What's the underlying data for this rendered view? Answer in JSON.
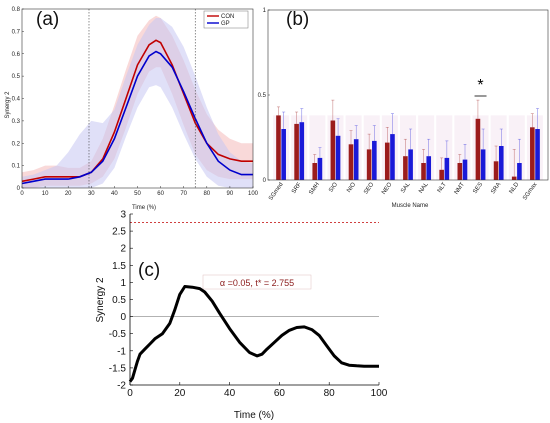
{
  "chart_data": [
    {
      "id": "a",
      "panel_label": "(a)",
      "type": "line",
      "xlabel": "Time (%)",
      "ylabel": "Synergy 2",
      "xlim": [
        0,
        100
      ],
      "ylim": [
        0,
        0.8
      ],
      "xticks": [
        "0",
        "10",
        "20",
        "30",
        "40",
        "50",
        "60",
        "70",
        "80",
        "90",
        "100"
      ],
      "yticks": [
        "0",
        "0.1",
        "0.2",
        "0.3",
        "0.4",
        "0.5",
        "0.6",
        "0.7",
        "0.8"
      ],
      "vlines": [
        29,
        75
      ],
      "legend": [
        "CON",
        "GP"
      ],
      "legend_position": "top-right",
      "x": [
        0,
        5,
        10,
        15,
        20,
        25,
        30,
        35,
        40,
        45,
        50,
        55,
        58,
        60,
        65,
        70,
        75,
        80,
        85,
        90,
        95,
        100
      ],
      "series": [
        {
          "name": "CON",
          "color": "#c00000",
          "band_color": "#f4b9b9",
          "values": [
            0.03,
            0.04,
            0.05,
            0.05,
            0.05,
            0.05,
            0.07,
            0.13,
            0.25,
            0.4,
            0.55,
            0.64,
            0.66,
            0.65,
            0.55,
            0.42,
            0.29,
            0.2,
            0.15,
            0.13,
            0.12,
            0.12
          ],
          "upper": [
            0.07,
            0.08,
            0.1,
            0.1,
            0.09,
            0.09,
            0.12,
            0.22,
            0.37,
            0.53,
            0.68,
            0.75,
            0.77,
            0.76,
            0.68,
            0.57,
            0.44,
            0.33,
            0.26,
            0.22,
            0.2,
            0.2
          ],
          "lower": [
            0,
            0,
            0.01,
            0.01,
            0.01,
            0.01,
            0.02,
            0.05,
            0.13,
            0.27,
            0.42,
            0.52,
            0.54,
            0.54,
            0.42,
            0.28,
            0.15,
            0.08,
            0.05,
            0.04,
            0.04,
            0.04
          ]
        },
        {
          "name": "GP",
          "color": "#0000cc",
          "band_color": "#c6c6f2",
          "values": [
            0.02,
            0.03,
            0.04,
            0.04,
            0.04,
            0.05,
            0.07,
            0.12,
            0.22,
            0.36,
            0.5,
            0.59,
            0.61,
            0.6,
            0.54,
            0.43,
            0.31,
            0.2,
            0.12,
            0.08,
            0.06,
            0.06
          ],
          "upper": [
            0.05,
            0.06,
            0.08,
            0.1,
            0.16,
            0.24,
            0.3,
            0.29,
            0.35,
            0.5,
            0.64,
            0.73,
            0.76,
            0.76,
            0.72,
            0.63,
            0.5,
            0.36,
            0.24,
            0.16,
            0.12,
            0.11
          ],
          "lower": [
            0,
            0,
            0,
            0,
            0,
            0,
            0,
            0.02,
            0.09,
            0.23,
            0.36,
            0.45,
            0.46,
            0.45,
            0.36,
            0.24,
            0.13,
            0.05,
            0.01,
            0,
            0,
            0
          ]
        }
      ]
    },
    {
      "id": "b",
      "panel_label": "(b)",
      "type": "bar",
      "xlabel": "Muscle Name",
      "ylabel": "",
      "ylim": [
        0,
        1
      ],
      "yticks": [
        "0",
        "0.5",
        "1"
      ],
      "categories": [
        "SGmed",
        "SRF",
        "SMH",
        "SIO",
        "NIO",
        "SEO",
        "NEO",
        "SAL",
        "NAL",
        "NLT",
        "NMT",
        "SES",
        "SRA",
        "NLD",
        "SGmax"
      ],
      "series": [
        {
          "name": "CON",
          "color": "#9b1c1c",
          "values": [
            0.38,
            0.33,
            0.1,
            0.35,
            0.21,
            0.18,
            0.22,
            0.14,
            0.1,
            0.06,
            0.1,
            0.36,
            0.11,
            0.02,
            0.31
          ],
          "errors": [
            0.05,
            0.07,
            0.05,
            0.12,
            0.08,
            0.09,
            0.09,
            0.1,
            0.08,
            0.07,
            0.05,
            0.11,
            0.09,
            0.16,
            0.08
          ]
        },
        {
          "name": "GP",
          "color": "#1a1ad8",
          "values": [
            0.3,
            0.34,
            0.13,
            0.26,
            0.24,
            0.23,
            0.27,
            0.18,
            0.14,
            0.13,
            0.12,
            0.18,
            0.2,
            0.1,
            0.3
          ],
          "errors": [
            0.1,
            0.08,
            0.06,
            0.1,
            0.08,
            0.09,
            0.12,
            0.12,
            0.1,
            0.1,
            0.09,
            0.12,
            0.1,
            0.14,
            0.12
          ]
        }
      ],
      "annotation": "*",
      "annotation_category": "SES"
    },
    {
      "id": "c",
      "panel_label": "(c)",
      "type": "line",
      "xlabel": "Time (%)",
      "ylabel": "Synergy 2",
      "xlim": [
        0,
        100
      ],
      "ylim": [
        -2,
        3
      ],
      "xticks": [
        "0",
        "20",
        "40",
        "60",
        "80",
        "100"
      ],
      "yticks": [
        "-2",
        "-1.5",
        "-1",
        "-0.5",
        "0",
        "0.5",
        "1",
        "1.5",
        "2",
        "2.5",
        "3"
      ],
      "threshold": 2.755,
      "threshold_label": "α =0.05,   t* = 2.755",
      "x": [
        0,
        1,
        2,
        3,
        4,
        6,
        8,
        10,
        13,
        16,
        18,
        20,
        22,
        25,
        28,
        30,
        33,
        36,
        40,
        44,
        48,
        51,
        53,
        55,
        58,
        61,
        64,
        67,
        70,
        73,
        76,
        79,
        82,
        85,
        88,
        91,
        94,
        97,
        100
      ],
      "values": [
        -1.9,
        -1.8,
        -1.55,
        -1.3,
        -1.1,
        -0.95,
        -0.8,
        -0.65,
        -0.5,
        -0.2,
        0.2,
        0.65,
        0.88,
        0.86,
        0.82,
        0.72,
        0.45,
        0.1,
        -0.35,
        -0.75,
        -1.05,
        -1.15,
        -1.1,
        -0.95,
        -0.75,
        -0.55,
        -0.4,
        -0.32,
        -0.3,
        -0.38,
        -0.55,
        -0.85,
        -1.15,
        -1.35,
        -1.42,
        -1.44,
        -1.45,
        -1.45,
        -1.45
      ]
    }
  ]
}
